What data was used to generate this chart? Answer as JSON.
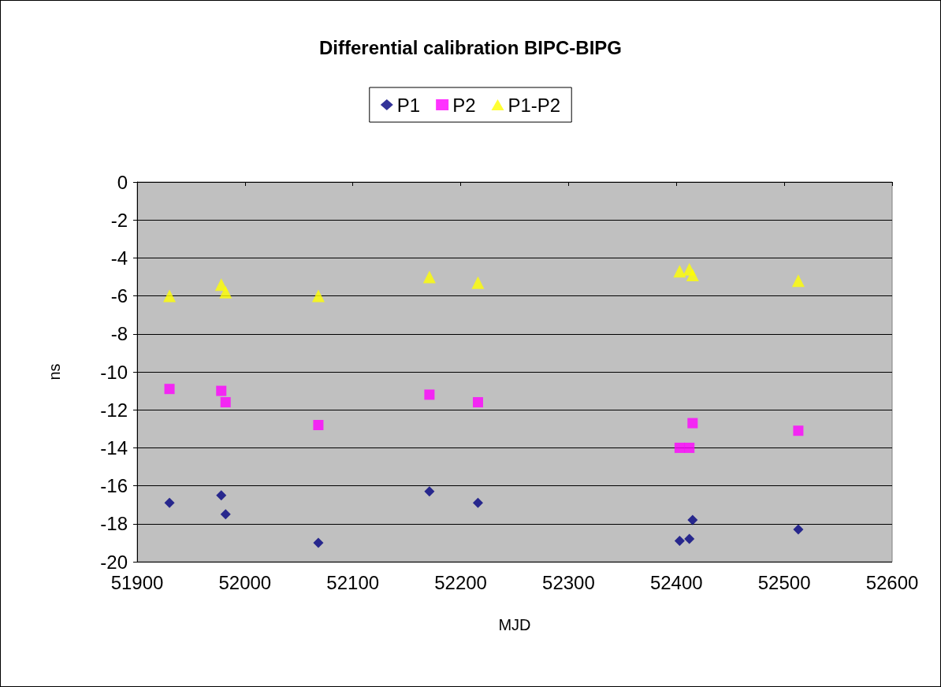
{
  "chart_data": {
    "type": "scatter",
    "title": "Differential calibration BIPC-BIPG",
    "xlabel": "MJD",
    "ylabel": "ns",
    "xlim": [
      51900,
      52600
    ],
    "xticks": [
      51900,
      52000,
      52100,
      52200,
      52300,
      52400,
      52500,
      52600
    ],
    "ylim": [
      -20,
      0
    ],
    "yticks": [
      -20,
      -18,
      -16,
      -14,
      -12,
      -10,
      -8,
      -6,
      -4,
      -2,
      0
    ],
    "grid": "y",
    "legend": "top",
    "x": [
      51930,
      51978,
      51982,
      52068,
      52171,
      52216,
      52403,
      52412,
      52415,
      52513
    ],
    "series": [
      {
        "name": "P1",
        "color": "#000080",
        "marker": "diamond",
        "values": [
          -16.9,
          -16.5,
          -17.5,
          -19.0,
          -16.3,
          -16.9,
          -18.9,
          -18.8,
          -17.8,
          -18.3
        ]
      },
      {
        "name": "P2",
        "color": "#ff00ff",
        "marker": "square",
        "values": [
          -10.9,
          -11.0,
          -11.6,
          -12.8,
          -11.2,
          -11.6,
          -14.0,
          -14.0,
          -12.7,
          -13.1
        ]
      },
      {
        "name": "P1-P2",
        "color": "#ffff00",
        "marker": "triangle",
        "values": [
          -6.0,
          -5.4,
          -5.8,
          -6.0,
          -5.0,
          -5.3,
          -4.7,
          -4.6,
          -4.9,
          -5.2
        ]
      }
    ]
  }
}
